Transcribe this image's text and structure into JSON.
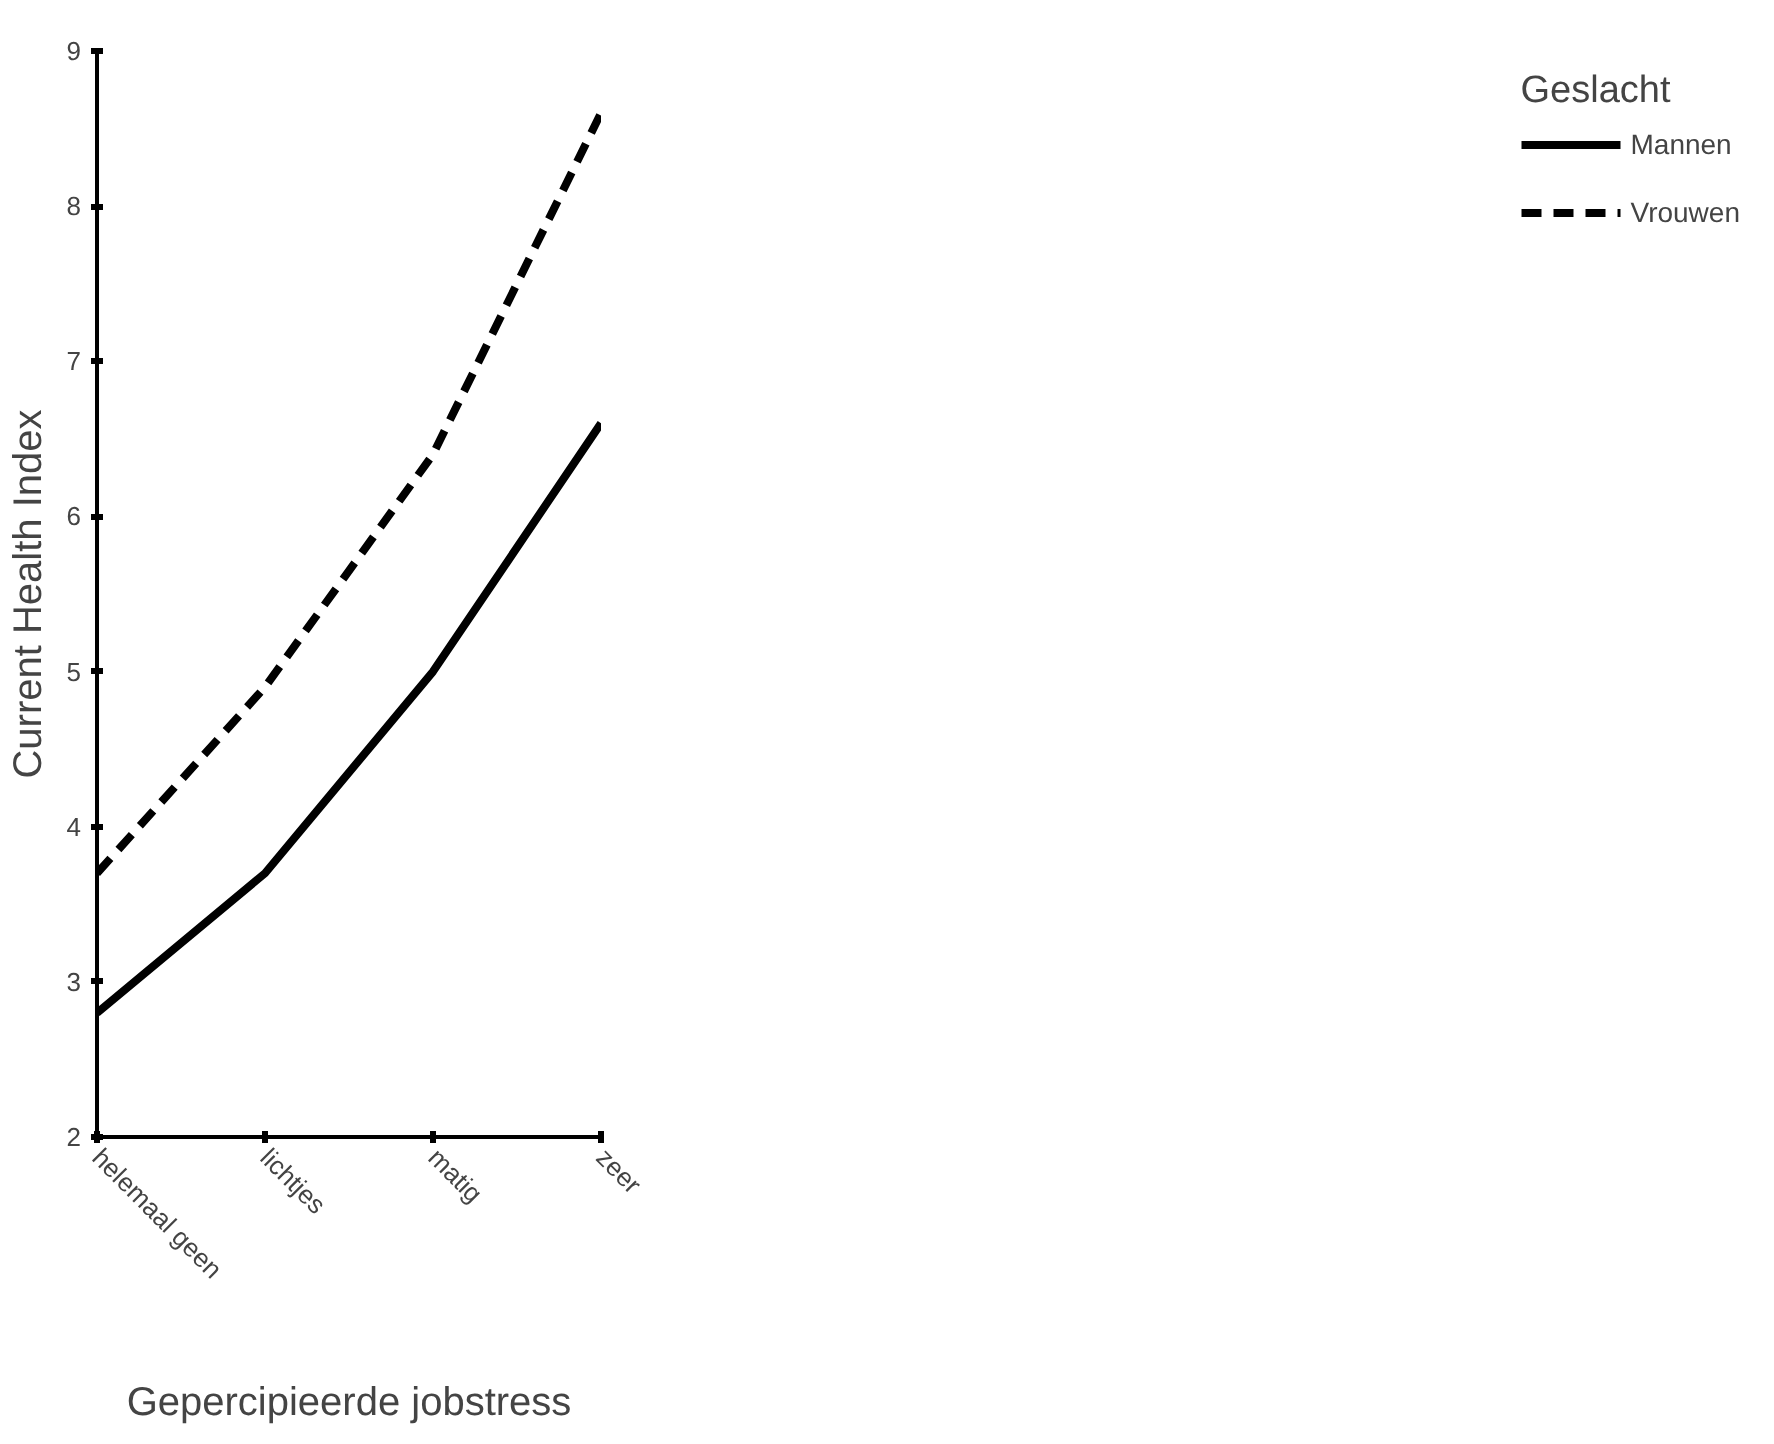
{
  "chart_data": {
    "type": "line",
    "xlabel": "Gepercipieerde jobstress",
    "ylabel": "Current Health Index",
    "legend_title": "Geslacht",
    "categories": [
      "helemaal geen",
      "lichtjes",
      "matig",
      "zeer"
    ],
    "series": [
      {
        "name": "Mannen",
        "color": "#000000",
        "values": [
          2.8,
          3.7,
          5.0,
          6.6
        ],
        "line_style": "solid"
      },
      {
        "name": "Vrouwen",
        "color": "#000000",
        "values": [
          3.7,
          4.9,
          6.4,
          8.6
        ],
        "line_style": "dashed"
      }
    ],
    "ylim": [
      2,
      9
    ],
    "yticks": [
      2,
      3,
      4,
      5,
      6,
      7,
      8,
      9
    ],
    "grid": false,
    "legend": "right",
    "marker": "none"
  }
}
